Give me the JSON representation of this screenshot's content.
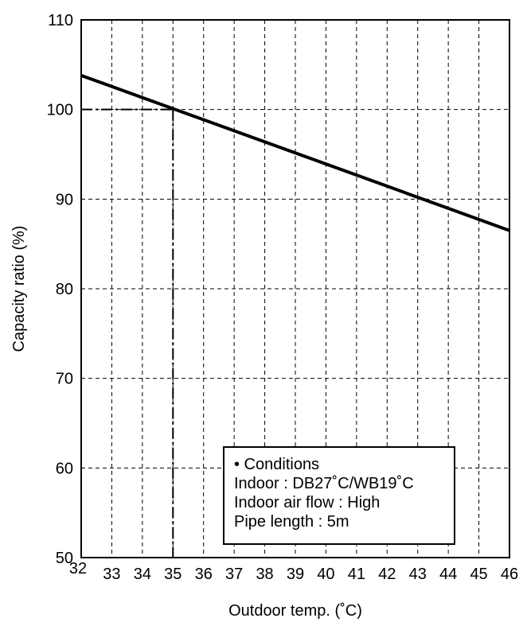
{
  "chart_data": {
    "type": "line",
    "title": "",
    "xlabel": "Outdoor temp. (˚C)",
    "ylabel": "Capacity ratio (%)",
    "xlim": [
      32,
      46
    ],
    "ylim": [
      50,
      110
    ],
    "xticks": [
      32,
      33,
      34,
      35,
      36,
      37,
      38,
      39,
      40,
      41,
      42,
      43,
      44,
      45,
      46
    ],
    "yticks": [
      50,
      60,
      70,
      80,
      90,
      100,
      110
    ],
    "grid": true,
    "grid_style": "dashed",
    "series": [
      {
        "x": [
          32,
          46
        ],
        "y": [
          103.8,
          86.5
        ],
        "color": "#000000"
      }
    ],
    "reference_point": {
      "x": 35,
      "y": 100,
      "style": "dash-dot"
    },
    "annotation": {
      "title": "• Conditions",
      "lines": [
        "Indoor : DB27˚C/WB19˚C",
        "Indoor air flow : High",
        "Pipe length : 5m"
      ]
    }
  }
}
